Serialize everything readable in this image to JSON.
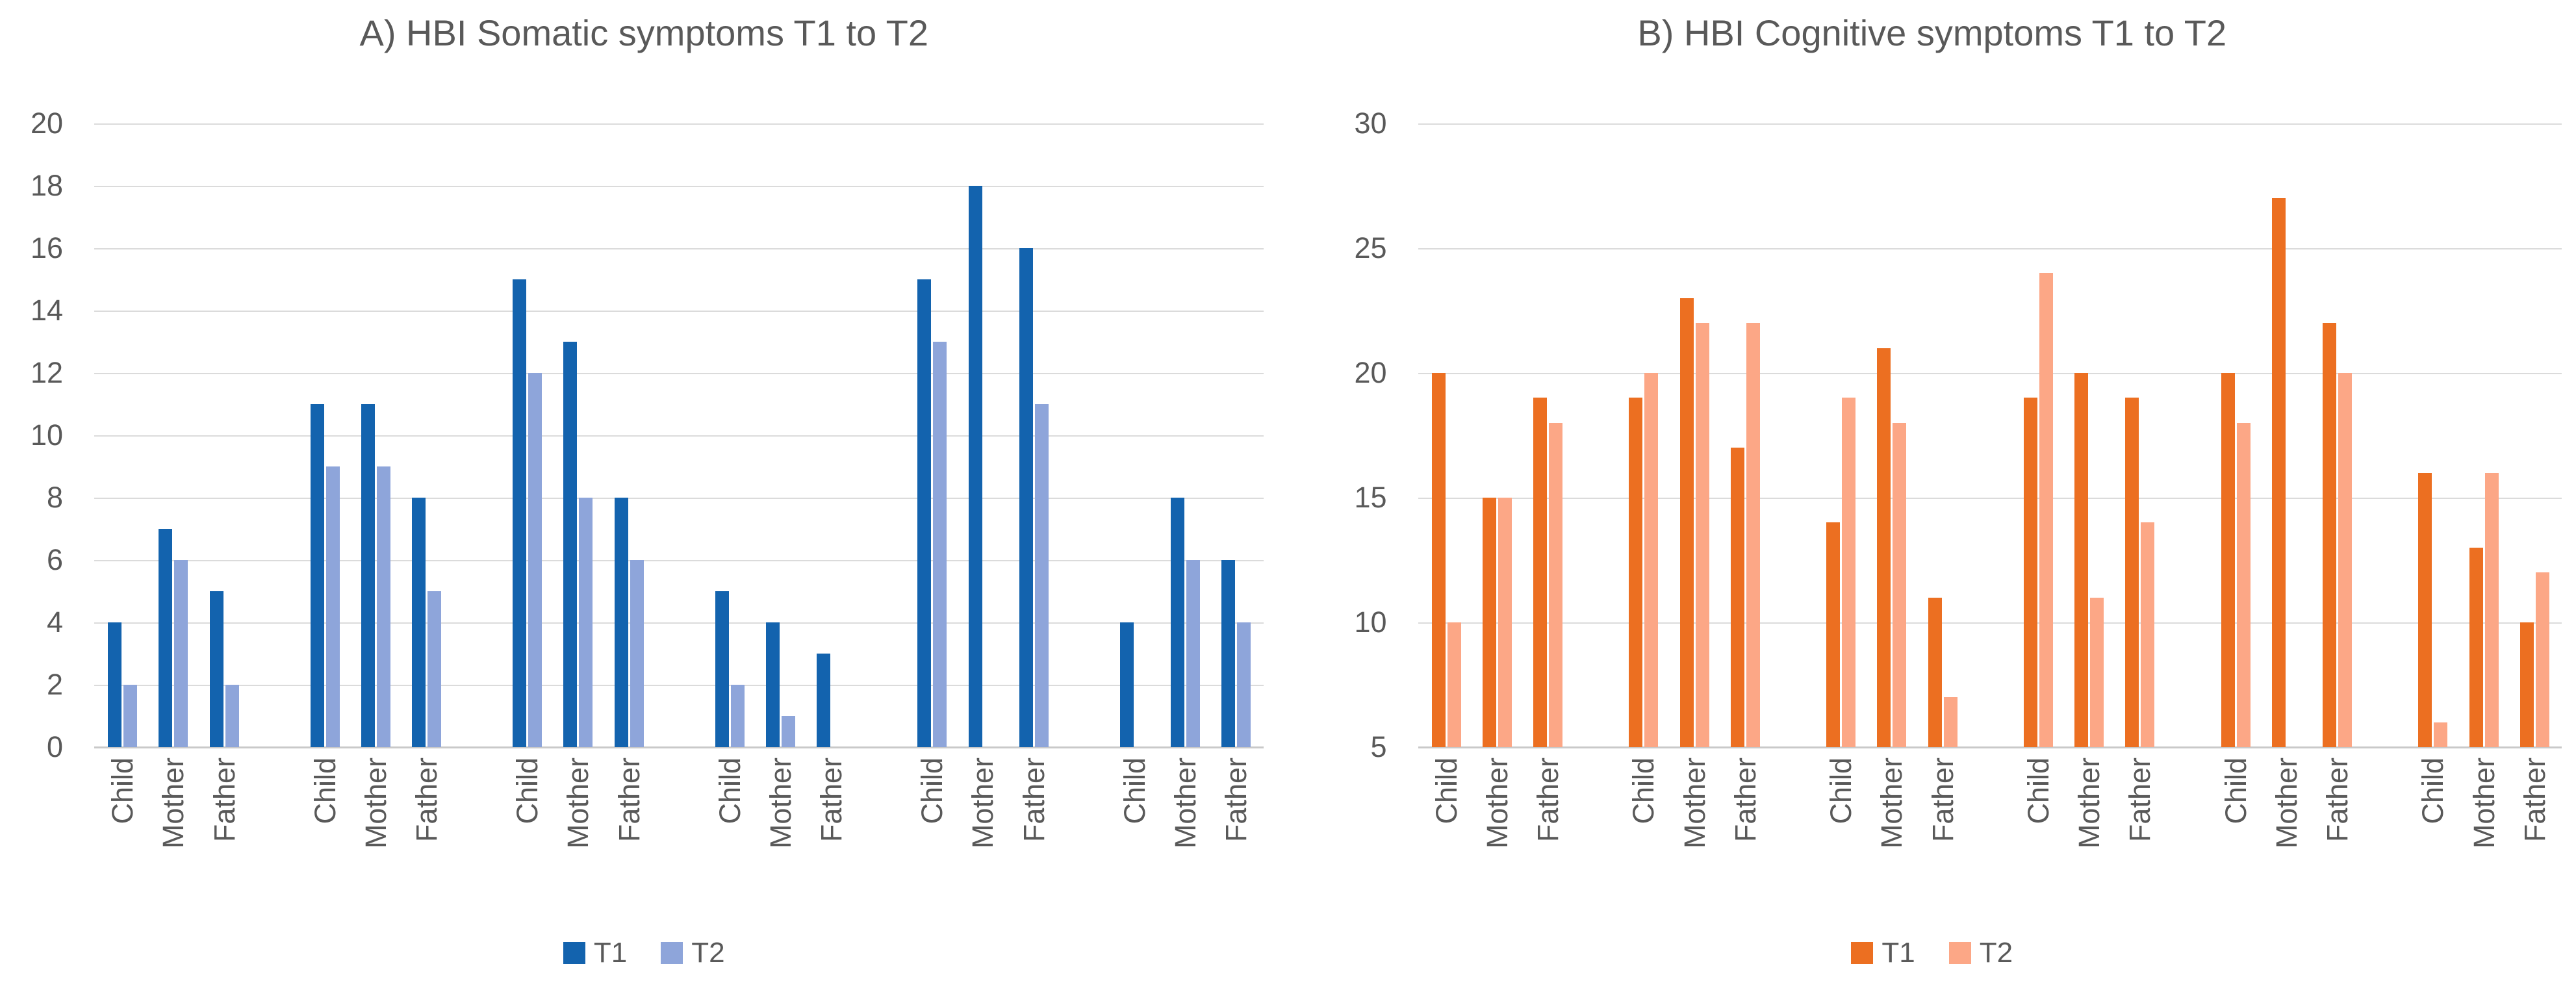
{
  "figure": {
    "background": "#FFFFFF",
    "text_color": "#595959",
    "gridline_color": "#DBDBDB",
    "axis_line_color": "#C9C9C9"
  },
  "chart_data": [
    {
      "type": "bar",
      "title": "A) HBI Somatic symptoms T1 to T2",
      "ylim": [
        0,
        20
      ],
      "yticks": [
        20,
        18,
        16,
        14,
        12,
        10,
        8,
        6,
        4,
        2,
        0
      ],
      "grid": true,
      "legend_position": "bottom",
      "legend": [
        {
          "name": "T1",
          "color": "#1363AE"
        },
        {
          "name": "T2",
          "color": "#8EA5DA"
        }
      ],
      "categories_per_group": [
        "Child",
        "Mother",
        "Father"
      ],
      "groups": [
        [
          {
            "label": "Child",
            "t1": 4,
            "t2": 2
          },
          {
            "label": "Mother",
            "t1": 7,
            "t2": 6
          },
          {
            "label": "Father",
            "t1": 5,
            "t2": 2
          }
        ],
        [
          {
            "label": "Child",
            "t1": 11,
            "t2": 9
          },
          {
            "label": "Mother",
            "t1": 11,
            "t2": 9
          },
          {
            "label": "Father",
            "t1": 8,
            "t2": 5
          }
        ],
        [
          {
            "label": "Child",
            "t1": 15,
            "t2": 12
          },
          {
            "label": "Mother",
            "t1": 13,
            "t2": 8
          },
          {
            "label": "Father",
            "t1": 8,
            "t2": 6
          }
        ],
        [
          {
            "label": "Child",
            "t1": 5,
            "t2": 2
          },
          {
            "label": "Mother",
            "t1": 4,
            "t2": 1
          },
          {
            "label": "Father",
            "t1": 3,
            "t2": null
          }
        ],
        [
          {
            "label": "Child",
            "t1": 15,
            "t2": 13
          },
          {
            "label": "Mother",
            "t1": 18,
            "t2": null
          },
          {
            "label": "Father",
            "t1": 16,
            "t2": 11
          }
        ],
        [
          {
            "label": "Child",
            "t1": 4,
            "t2": null
          },
          {
            "label": "Mother",
            "t1": 8,
            "t2": 6
          },
          {
            "label": "Father",
            "t1": 6,
            "t2": 4
          }
        ]
      ]
    },
    {
      "type": "bar",
      "title": "B) HBI Cognitive symptoms T1 to T2",
      "ylim": [
        5,
        30
      ],
      "yticks": [
        30,
        25,
        20,
        15,
        10,
        5
      ],
      "grid": true,
      "legend_position": "bottom",
      "legend": [
        {
          "name": "T1",
          "color": "#EC6F21"
        },
        {
          "name": "T2",
          "color": "#FCA786"
        }
      ],
      "categories_per_group": [
        "Child",
        "Mother",
        "Father"
      ],
      "groups": [
        [
          {
            "label": "Child",
            "t1": 20,
            "t2": 10
          },
          {
            "label": "Mother",
            "t1": 15,
            "t2": 15
          },
          {
            "label": "Father",
            "t1": 19,
            "t2": 18
          }
        ],
        [
          {
            "label": "Child",
            "t1": 19,
            "t2": 20
          },
          {
            "label": "Mother",
            "t1": 23,
            "t2": 22
          },
          {
            "label": "Father",
            "t1": 17,
            "t2": 22
          }
        ],
        [
          {
            "label": "Child",
            "t1": 14,
            "t2": 19
          },
          {
            "label": "Mother",
            "t1": 21,
            "t2": 18
          },
          {
            "label": "Father",
            "t1": 11,
            "t2": 7
          }
        ],
        [
          {
            "label": "Child",
            "t1": 19,
            "t2": 24
          },
          {
            "label": "Mother",
            "t1": 20,
            "t2": 11
          },
          {
            "label": "Father",
            "t1": 19,
            "t2": 14
          }
        ],
        [
          {
            "label": "Child",
            "t1": 20,
            "t2": 18
          },
          {
            "label": "Mother",
            "t1": 27,
            "t2": null
          },
          {
            "label": "Father",
            "t1": 22,
            "t2": 20
          }
        ],
        [
          {
            "label": "Child",
            "t1": 16,
            "t2": 6
          },
          {
            "label": "Mother",
            "t1": 13,
            "t2": 16
          },
          {
            "label": "Father",
            "t1": 10,
            "t2": 12
          }
        ]
      ]
    }
  ]
}
